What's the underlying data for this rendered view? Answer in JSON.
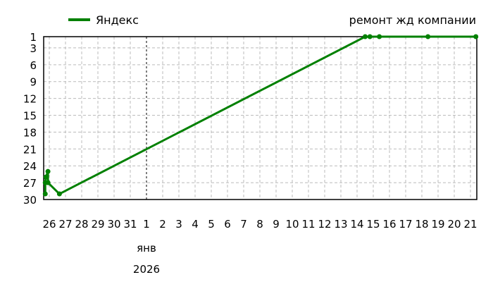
{
  "chart_data": {
    "type": "line",
    "title": "ремонт жд компании",
    "xlabel": "",
    "ylabel": "",
    "y_inverted": true,
    "ylim": [
      1,
      30
    ],
    "y_ticks": [
      1,
      3,
      6,
      9,
      12,
      15,
      18,
      21,
      24,
      27,
      30
    ],
    "x_range": [
      "2025-12-25T12:00",
      "2026-01-21T08:00"
    ],
    "x_tick_labels": [
      "26",
      "27",
      "28",
      "29",
      "30",
      "31",
      "1",
      "2",
      "3",
      "4",
      "5",
      "6",
      "7",
      "8",
      "9",
      "10",
      "11",
      "12",
      "13",
      "14",
      "15",
      "16",
      "17",
      "18",
      "19",
      "20",
      "21"
    ],
    "x_tick_dates": [
      "2025-12-26",
      "2025-12-27",
      "2025-12-28",
      "2025-12-29",
      "2025-12-30",
      "2025-12-31",
      "2026-01-01",
      "2026-01-02",
      "2026-01-03",
      "2026-01-04",
      "2026-01-05",
      "2026-01-06",
      "2026-01-07",
      "2026-01-08",
      "2026-01-09",
      "2026-01-10",
      "2026-01-11",
      "2026-01-12",
      "2026-01-13",
      "2026-01-14",
      "2026-01-15",
      "2026-01-16",
      "2026-01-17",
      "2026-01-18",
      "2026-01-19",
      "2026-01-20",
      "2026-01-21"
    ],
    "month_label": "янв",
    "year_label": "2026",
    "month_marker_date": "2026-01-01",
    "grid": true,
    "legend_position": "top-left",
    "series": [
      {
        "name": "Яндекс",
        "color": "#008000",
        "points": [
          {
            "x": "2025-12-25T18:00",
            "y": 29
          },
          {
            "x": "2025-12-25T18:00",
            "y": 27
          },
          {
            "x": "2025-12-25T19:00",
            "y": 26
          },
          {
            "x": "2025-12-25T22:00",
            "y": 25
          },
          {
            "x": "2025-12-25T22:00",
            "y": 27
          },
          {
            "x": "2025-12-26T15:00",
            "y": 29
          },
          {
            "x": "2026-01-14T12:00",
            "y": 1
          },
          {
            "x": "2026-01-14T19:00",
            "y": 1
          },
          {
            "x": "2026-01-15T09:00",
            "y": 1
          },
          {
            "x": "2026-01-18T09:00",
            "y": 1
          },
          {
            "x": "2026-01-21T08:00",
            "y": 1
          }
        ]
      }
    ]
  }
}
